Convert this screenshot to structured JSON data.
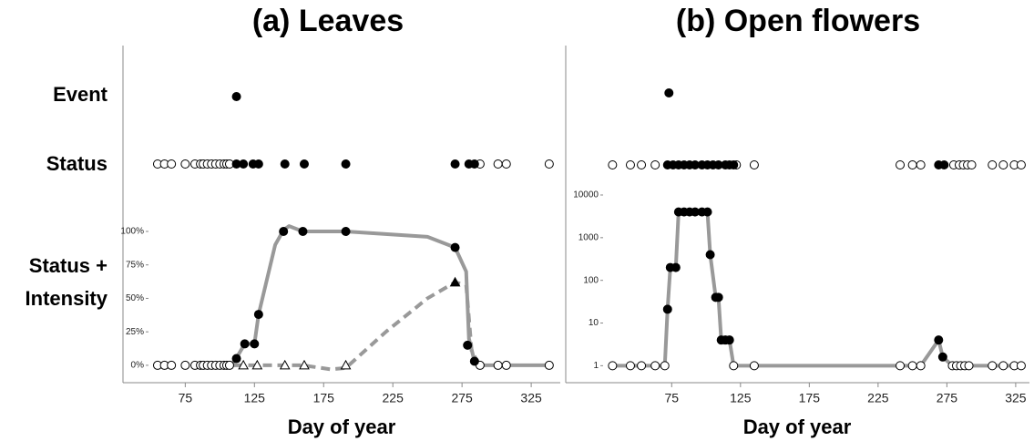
{
  "chart_data": [
    {
      "type": "scatter",
      "title": "(a) Leaves",
      "x_label": "Day of year",
      "row_labels": [
        "Event",
        "Status",
        "Status + Intensity"
      ],
      "xlim": [
        30,
        346
      ],
      "xticks": [
        75,
        125,
        175,
        225,
        275,
        325
      ],
      "ylim": [
        -13,
        100
      ],
      "yticks": [
        {
          "value": 0,
          "label": "0%"
        },
        {
          "value": 25,
          "label": "25%"
        },
        {
          "value": 50,
          "label": "50%"
        },
        {
          "value": 75,
          "label": "75%"
        },
        {
          "value": 100,
          "label": "100%"
        }
      ],
      "series": [
        {
          "kind": "line",
          "color": "#999999",
          "x": [
            100,
            110,
            118,
            125,
            128,
            140,
            146,
            150,
            160,
            191,
            250,
            270,
            278,
            280,
            284,
            290,
            338
          ],
          "values": [
            0,
            2,
            16,
            16,
            38,
            90,
            101,
            104,
            100,
            100,
            96,
            88,
            70,
            20,
            3,
            0,
            0
          ]
        },
        {
          "kind": "line",
          "dash": true,
          "color": "#999999",
          "x": [
            110,
            160,
            180,
            191,
            220,
            250,
            270,
            278,
            282,
            288
          ],
          "values": [
            0,
            0,
            -3,
            -2,
            25,
            50,
            62,
            60,
            10,
            0
          ]
        },
        {
          "row": "event",
          "marker": "filled-circle",
          "x": [
            112
          ]
        },
        {
          "row": "status",
          "marker": "open-circle",
          "x": [
            55,
            60,
            65,
            75,
            82,
            86,
            88,
            91,
            94,
            97,
            100,
            103,
            105,
            107,
            288,
            301,
            307,
            338
          ]
        },
        {
          "row": "status",
          "marker": "filled-circle",
          "x": [
            112,
            117,
            124,
            128,
            147,
            161,
            191,
            270,
            280,
            284
          ]
        },
        {
          "marker": "open-circle",
          "x": [
            55,
            60,
            65,
            75,
            82,
            86,
            88,
            91,
            94,
            97,
            100,
            103,
            105,
            107,
            288,
            301,
            307,
            338
          ],
          "values": [
            0,
            0,
            0,
            0,
            0,
            0,
            0,
            0,
            0,
            0,
            0,
            0,
            0,
            0,
            0,
            0,
            0,
            0
          ]
        },
        {
          "marker": "open-triangle",
          "x": [
            117,
            127,
            147,
            161,
            191
          ],
          "values": [
            0,
            0,
            0,
            0,
            0
          ]
        },
        {
          "marker": "filled-circle",
          "x": [
            112,
            118,
            125,
            128,
            146,
            160,
            191,
            270,
            279,
            284
          ],
          "values": [
            5,
            16,
            16,
            38,
            100,
            100,
            100,
            88,
            15,
            3
          ]
        },
        {
          "marker": "filled-triangle",
          "x": [
            270
          ],
          "values": [
            62
          ]
        }
      ]
    },
    {
      "type": "scatter",
      "title": "(b) Open flowers",
      "x_label": "Day of year",
      "xlim": [
        -2,
        335
      ],
      "xticks": [
        75,
        125,
        175,
        225,
        275,
        325
      ],
      "log_y": true,
      "ylim": [
        0.4,
        10000
      ],
      "yticks": [
        1,
        10,
        100,
        1000,
        10000
      ],
      "series": [
        {
          "kind": "line",
          "color": "#999999",
          "x": [
            32,
            45,
            53,
            63,
            70,
            72,
            74,
            78,
            80,
            84,
            88,
            92,
            97,
            101,
            103,
            107,
            109,
            111,
            114,
            117,
            120,
            135,
            241,
            250,
            256,
            269,
            272,
            279,
            282,
            285,
            288,
            291,
            308,
            316,
            324,
            329
          ],
          "values": [
            1,
            1,
            1,
            1,
            1,
            21,
            200,
            200,
            4000,
            4000,
            4000,
            4000,
            4000,
            4000,
            400,
            40,
            40,
            4,
            4,
            4,
            1,
            1,
            1,
            1,
            1,
            4,
            1.6,
            1,
            1,
            1,
            1,
            1,
            1,
            1,
            1,
            1
          ]
        },
        {
          "row": "event",
          "marker": "filled-circle",
          "x": [
            73
          ]
        },
        {
          "row": "status",
          "marker": "open-circle",
          "x": [
            32,
            45,
            53,
            63,
            122,
            135,
            241,
            250,
            256,
            280,
            284,
            287,
            290,
            293,
            308,
            316,
            324,
            329
          ]
        },
        {
          "row": "status",
          "marker": "filled-circle",
          "x": [
            72,
            76,
            80,
            84,
            88,
            92,
            97,
            101,
            105,
            109,
            114,
            117,
            120,
            269,
            273
          ]
        },
        {
          "marker": "open-circle",
          "x": [
            32,
            45,
            53,
            63,
            70,
            120,
            135,
            241,
            250,
            256,
            279,
            282,
            285,
            288,
            291,
            308,
            316,
            324,
            329
          ],
          "values": [
            1,
            1,
            1,
            1,
            1,
            1,
            1,
            1,
            1,
            1,
            1,
            1,
            1,
            1,
            1,
            1,
            1,
            1,
            1
          ]
        },
        {
          "marker": "filled-circle",
          "x": [
            72,
            74,
            78,
            80,
            84,
            88,
            92,
            97,
            101,
            103,
            107,
            109,
            111,
            114,
            117,
            269,
            272
          ],
          "values": [
            21,
            200,
            200,
            4000,
            4000,
            4000,
            4000,
            4000,
            4000,
            400,
            40,
            40,
            4,
            4,
            4,
            4,
            1.6
          ]
        }
      ]
    }
  ]
}
